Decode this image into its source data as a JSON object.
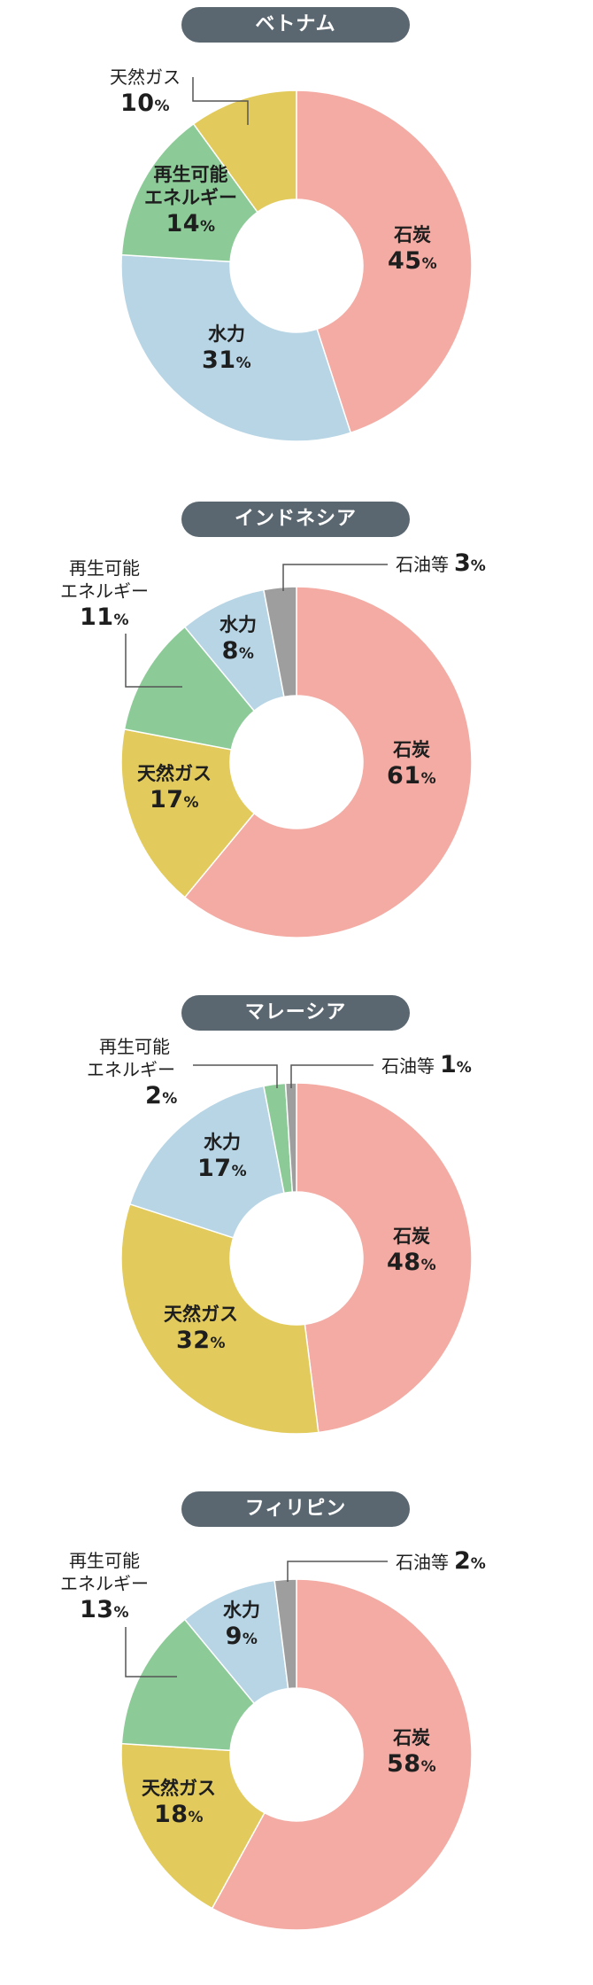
{
  "percent_sign": "%",
  "chart_data": [
    {
      "type": "pie",
      "title": "ベトナム",
      "categories": [
        "石炭",
        "水力",
        "再生可能エネルギー",
        "天然ガス"
      ],
      "values": [
        45,
        31,
        14,
        10
      ],
      "colors": [
        "#f3aba3",
        "#b7d5e5",
        "#8ccb97",
        "#e2cb5c"
      ],
      "labels": {
        "coal": {
          "name": "石炭",
          "value": "45"
        },
        "hydro": {
          "name": "水力",
          "value": "31"
        },
        "renew": {
          "name1": "再生可能",
          "name2": "エネルギー",
          "value": "14"
        },
        "gas": {
          "name": "天然ガス",
          "value": "10"
        }
      }
    },
    {
      "type": "pie",
      "title": "インドネシア",
      "categories": [
        "石炭",
        "天然ガス",
        "再生可能エネルギー",
        "水力",
        "石油等"
      ],
      "values": [
        61,
        17,
        11,
        8,
        3
      ],
      "colors": [
        "#f3aba3",
        "#e2cb5c",
        "#8ccb97",
        "#b7d5e5",
        "#9e9e9e"
      ],
      "labels": {
        "coal": {
          "name": "石炭",
          "value": "61"
        },
        "gas": {
          "name": "天然ガス",
          "value": "17"
        },
        "renew": {
          "name1": "再生可能",
          "name2": "エネルギー",
          "value": "11"
        },
        "hydro": {
          "name": "水力",
          "value": "8"
        },
        "oil": {
          "name": "石油等",
          "value": "3"
        }
      }
    },
    {
      "type": "pie",
      "title": "マレーシア",
      "categories": [
        "石炭",
        "天然ガス",
        "水力",
        "再生可能エネルギー",
        "石油等"
      ],
      "values": [
        48,
        32,
        17,
        2,
        1
      ],
      "colors": [
        "#f3aba3",
        "#e2cb5c",
        "#b7d5e5",
        "#8ccb97",
        "#9e9e9e"
      ],
      "labels": {
        "coal": {
          "name": "石炭",
          "value": "48"
        },
        "gas": {
          "name": "天然ガス",
          "value": "32"
        },
        "hydro": {
          "name": "水力",
          "value": "17"
        },
        "renew": {
          "name1": "再生可能",
          "name2": "エネルギー",
          "value": "2"
        },
        "oil": {
          "name": "石油等",
          "value": "1"
        }
      }
    },
    {
      "type": "pie",
      "title": "フィリピン",
      "categories": [
        "石炭",
        "天然ガス",
        "再生可能エネルギー",
        "水力",
        "石油等"
      ],
      "values": [
        58,
        18,
        13,
        9,
        2
      ],
      "colors": [
        "#f3aba3",
        "#e2cb5c",
        "#8ccb97",
        "#b7d5e5",
        "#9e9e9e"
      ],
      "labels": {
        "coal": {
          "name": "石炭",
          "value": "58"
        },
        "gas": {
          "name": "天然ガス",
          "value": "18"
        },
        "renew": {
          "name1": "再生可能",
          "name2": "エネルギー",
          "value": "13"
        },
        "hydro": {
          "name": "水力",
          "value": "9"
        },
        "oil": {
          "name": "石油等",
          "value": "2"
        }
      }
    }
  ]
}
